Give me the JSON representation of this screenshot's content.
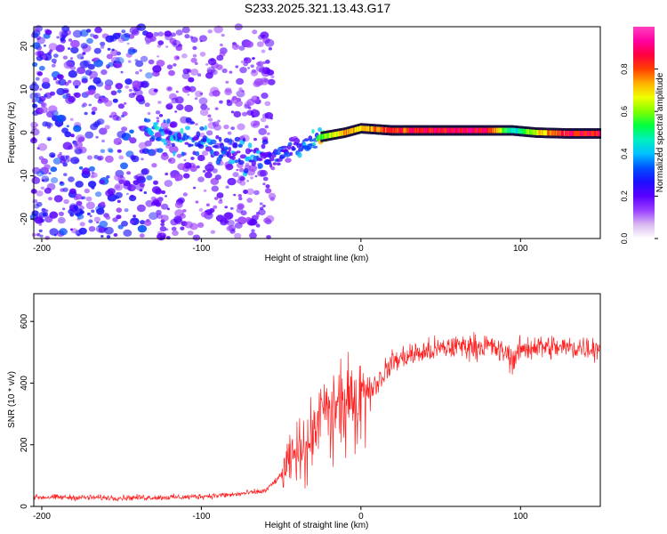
{
  "title": "S233.2025.321.13.43.G17",
  "chart_data": [
    {
      "type": "heatmap",
      "title": "S233.2025.321.13.43.G17",
      "xlabel": "Height of straight line (km)",
      "ylabel": "Frequency (Hz)",
      "xlim": [
        -205,
        150
      ],
      "ylim": [
        -24.5,
        24.5
      ],
      "xticks": [
        -200,
        -100,
        0,
        100
      ],
      "yticks": [
        -20,
        -10,
        0,
        10,
        20
      ],
      "colorbar": {
        "label": "Normalized spectral amplitude",
        "range": [
          0,
          1
        ],
        "ticks": [
          0.0,
          0.2,
          0.4,
          0.6,
          0.8
        ],
        "tick_labels": [
          "0.0",
          "0.2",
          "0.4",
          "0.6",
          "0.8"
        ],
        "colors": [
          "#ffffff",
          "#d8b8f0",
          "#9a40ff",
          "#5a00ff",
          "#1d10ff",
          "#0050ff",
          "#00c0ff",
          "#00f0c0",
          "#00ff40",
          "#80ff00",
          "#f0ff00",
          "#ffb000",
          "#ff4000",
          "#ff0040",
          "#ff00a0",
          "#ff40c0"
        ]
      },
      "signal_trace": [
        {
          "x": -135,
          "f": 0.5,
          "a": 0.35
        },
        {
          "x": -110,
          "f": -1.5,
          "a": 0.4
        },
        {
          "x": -90,
          "f": -3.5,
          "a": 0.35
        },
        {
          "x": -70,
          "f": -5.0,
          "a": 0.35
        },
        {
          "x": -55,
          "f": -6.0,
          "a": 0.3
        },
        {
          "x": -40,
          "f": -3.0,
          "a": 0.3
        },
        {
          "x": -25,
          "f": -1.0,
          "a": 0.6
        },
        {
          "x": -10,
          "f": 0.0,
          "a": 0.85
        },
        {
          "x": 0,
          "f": 1.0,
          "a": 0.75
        },
        {
          "x": 20,
          "f": 0.5,
          "a": 0.9
        },
        {
          "x": 50,
          "f": 0.5,
          "a": 0.95
        },
        {
          "x": 80,
          "f": 0.5,
          "a": 0.95
        },
        {
          "x": 95,
          "f": 0.5,
          "a": 0.45
        },
        {
          "x": 110,
          "f": 0.0,
          "a": 0.75
        },
        {
          "x": 130,
          "f": -0.2,
          "a": 0.95
        },
        {
          "x": 150,
          "f": -0.2,
          "a": 0.95
        }
      ]
    },
    {
      "type": "line",
      "xlabel": "Height of straight line (km)",
      "ylabel": "SNR (10 * v/v)",
      "xlim": [
        -205,
        150
      ],
      "ylim": [
        0,
        690
      ],
      "xticks": [
        -200,
        -100,
        0,
        100
      ],
      "yticks": [
        0,
        200,
        400,
        600
      ],
      "series_color": "#ff2020",
      "series": [
        {
          "name": "SNR",
          "x": [
            -205,
            -150,
            -110,
            -80,
            -60,
            -50,
            -40,
            -30,
            -25,
            -20,
            -10,
            0,
            10,
            20,
            30,
            40,
            50,
            60,
            70,
            80,
            90,
            95,
            100,
            110,
            120,
            130,
            140,
            150
          ],
          "values": [
            30,
            28,
            30,
            38,
            50,
            100,
            180,
            240,
            300,
            300,
            330,
            380,
            400,
            470,
            490,
            500,
            510,
            520,
            520,
            520,
            500,
            480,
            510,
            520,
            515,
            515,
            515,
            515
          ]
        }
      ]
    }
  ]
}
